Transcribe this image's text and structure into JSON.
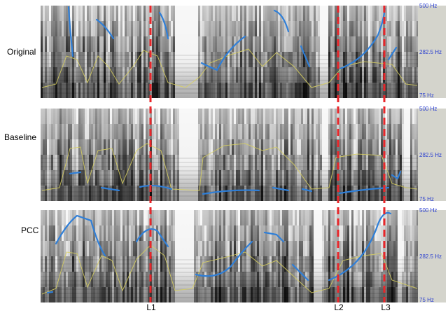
{
  "rows": [
    {
      "label": "Original"
    },
    {
      "label": "Baseline"
    },
    {
      "label": "PCC"
    }
  ],
  "frequency_axis": {
    "top": "500 Hz",
    "middle": "282.5 Hz",
    "bottom": "75 Hz"
  },
  "markers": [
    "L1",
    "L2",
    "L3"
  ]
}
